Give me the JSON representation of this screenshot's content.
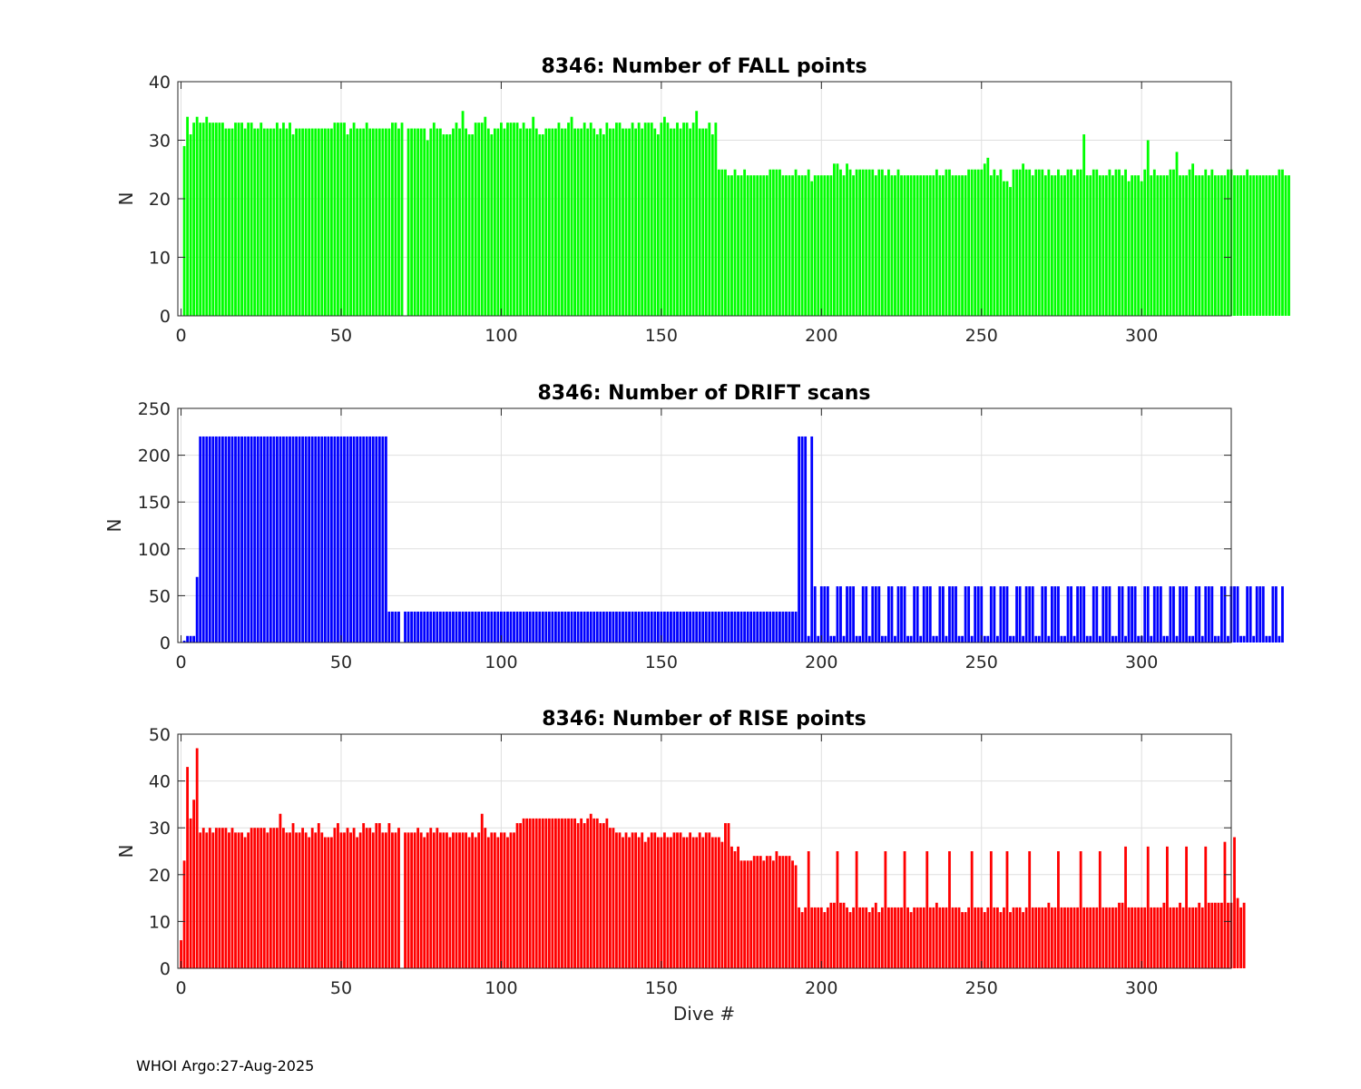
{
  "footer": "WHOI Argo:27-Aug-2025",
  "chart_data": [
    {
      "type": "bar",
      "title": "8346: Number of FALL points",
      "xlabel": "",
      "ylabel": "N",
      "xlim": [
        -1,
        328
      ],
      "ylim": [
        0,
        40
      ],
      "xticks": [
        0,
        50,
        100,
        150,
        200,
        250,
        300
      ],
      "yticks": [
        0,
        10,
        20,
        30,
        40
      ],
      "grid": true,
      "color": "#00ff00",
      "dives_start": 1,
      "values": [
        29,
        34,
        31,
        33,
        34,
        33,
        33,
        34,
        33,
        33,
        33,
        33,
        33,
        32,
        32,
        32,
        33,
        33,
        33,
        32,
        33,
        33,
        32,
        32,
        33,
        32,
        32,
        32,
        32,
        33,
        32,
        33,
        32,
        33,
        31,
        32,
        32,
        32,
        32,
        32,
        32,
        32,
        32,
        32,
        32,
        32,
        32,
        33,
        33,
        33,
        33,
        31,
        32,
        33,
        32,
        32,
        32,
        33,
        32,
        32,
        32,
        32,
        32,
        32,
        32,
        33,
        33,
        32,
        33,
        0,
        32,
        32,
        32,
        32,
        32,
        32,
        30,
        32,
        33,
        32,
        32,
        31,
        31,
        31,
        32,
        33,
        32,
        35,
        32,
        31,
        31,
        33,
        33,
        33,
        34,
        32,
        31,
        32,
        32,
        33,
        32,
        33,
        33,
        33,
        33,
        32,
        33,
        32,
        32,
        34,
        32,
        31,
        31,
        32,
        32,
        32,
        32,
        33,
        32,
        32,
        33,
        34,
        32,
        32,
        32,
        33,
        32,
        33,
        32,
        31,
        32,
        31,
        33,
        32,
        32,
        33,
        33,
        32,
        32,
        32,
        33,
        32,
        33,
        32,
        33,
        33,
        33,
        32,
        31,
        33,
        34,
        33,
        32,
        32,
        33,
        32,
        33,
        33,
        32,
        33,
        35,
        32,
        32,
        32,
        33,
        31,
        33,
        25,
        25,
        25,
        24,
        24,
        25,
        24,
        24,
        25,
        24,
        24,
        24,
        24,
        24,
        24,
        24,
        25,
        25,
        25,
        25,
        24,
        24,
        24,
        24,
        25,
        24,
        24,
        24,
        25,
        23,
        24,
        24,
        24,
        24,
        24,
        24,
        26,
        26,
        25,
        24,
        26,
        25,
        24,
        25,
        25,
        25,
        25,
        25,
        25,
        24,
        25,
        25,
        24,
        25,
        24,
        24,
        25,
        24,
        24,
        24,
        24,
        24,
        24,
        24,
        24,
        24,
        24,
        24,
        25,
        24,
        24,
        25,
        25,
        24,
        24,
        24,
        24,
        24,
        25,
        25,
        25,
        25,
        25,
        26,
        27,
        24,
        25,
        24,
        25,
        23,
        23,
        22,
        25,
        25,
        25,
        26,
        25,
        25,
        24,
        25,
        25,
        25,
        24,
        25,
        24,
        24,
        25,
        24,
        24,
        25,
        25,
        24,
        25,
        25,
        31,
        24,
        24,
        25,
        25,
        24,
        24,
        24,
        25,
        24,
        25,
        25,
        24,
        25,
        23,
        24,
        24,
        24,
        23,
        25,
        30,
        24,
        25,
        24,
        24,
        24,
        24,
        25,
        25,
        28,
        24,
        24,
        24,
        25,
        26,
        24,
        24,
        24,
        25,
        24,
        25,
        24,
        24,
        24,
        24,
        25,
        25,
        24,
        24,
        24,
        24,
        25,
        24,
        24,
        24,
        24,
        24,
        24,
        24,
        24,
        24,
        25,
        25,
        24,
        24
      ]
    },
    {
      "type": "bar",
      "title": "8346: Number of DRIFT scans",
      "xlabel": "",
      "ylabel": "N",
      "xlim": [
        -1,
        328
      ],
      "ylim": [
        0,
        250
      ],
      "xticks": [
        0,
        50,
        100,
        150,
        200,
        250,
        300
      ],
      "yticks": [
        0,
        50,
        100,
        150,
        200,
        250
      ],
      "grid": true,
      "color": "#0000ff",
      "dives_start": 1,
      "values": [
        2,
        7,
        7,
        7,
        70,
        220,
        220,
        220,
        220,
        220,
        220,
        220,
        220,
        220,
        220,
        220,
        220,
        220,
        220,
        220,
        220,
        220,
        220,
        220,
        220,
        220,
        220,
        220,
        220,
        220,
        220,
        220,
        220,
        220,
        220,
        220,
        220,
        220,
        220,
        220,
        220,
        220,
        220,
        220,
        220,
        220,
        220,
        220,
        220,
        220,
        220,
        220,
        220,
        220,
        220,
        220,
        220,
        220,
        220,
        220,
        220,
        220,
        220,
        220,
        33,
        33,
        33,
        33,
        0,
        33,
        33,
        33,
        33,
        33,
        33,
        33,
        33,
        33,
        33,
        33,
        33,
        33,
        33,
        33,
        33,
        33,
        33,
        33,
        33,
        33,
        33,
        33,
        33,
        33,
        33,
        33,
        33,
        33,
        33,
        33,
        33,
        33,
        33,
        33,
        33,
        33,
        33,
        33,
        33,
        33,
        33,
        33,
        33,
        33,
        33,
        33,
        33,
        33,
        33,
        33,
        33,
        33,
        33,
        33,
        33,
        33,
        33,
        33,
        33,
        33,
        33,
        33,
        33,
        33,
        33,
        33,
        33,
        33,
        33,
        33,
        33,
        33,
        33,
        33,
        33,
        33,
        33,
        33,
        33,
        33,
        33,
        33,
        33,
        33,
        33,
        33,
        33,
        33,
        33,
        33,
        33,
        33,
        33,
        33,
        33,
        33,
        33,
        33,
        33,
        33,
        33,
        33,
        33,
        33,
        33,
        33,
        33,
        33,
        33,
        33,
        33,
        33,
        33,
        33,
        33,
        33,
        33,
        33,
        33,
        33,
        33,
        33,
        220,
        220,
        220,
        7,
        220,
        60,
        7,
        60,
        60,
        60,
        7,
        7,
        60,
        60,
        7,
        60,
        60,
        60,
        7,
        7,
        60,
        60,
        7,
        60,
        60,
        60,
        7,
        7,
        60,
        60,
        7,
        60,
        60,
        60,
        7,
        7,
        60,
        60,
        7,
        60,
        60,
        60,
        7,
        7,
        60,
        60,
        7,
        60,
        60,
        60,
        7,
        7,
        60,
        60,
        7,
        60,
        60,
        60,
        7,
        7,
        60,
        60,
        7,
        60,
        60,
        60,
        7,
        7,
        60,
        60,
        7,
        60,
        60,
        60,
        7,
        7,
        60,
        60,
        7,
        60,
        60,
        60,
        7,
        7,
        60,
        60,
        7,
        60,
        60,
        60,
        7,
        7,
        60,
        60,
        7,
        60,
        60,
        60,
        7,
        7,
        60,
        60,
        7,
        60,
        60,
        60,
        7,
        7,
        60,
        60,
        7,
        60,
        60,
        60,
        7,
        7,
        60,
        60,
        7,
        60,
        60,
        60,
        7,
        7,
        60,
        60,
        7,
        60,
        60,
        60,
        7,
        7,
        60,
        60,
        7,
        60,
        60,
        60,
        7,
        7,
        60,
        60,
        7,
        60,
        60,
        60,
        7,
        7,
        60,
        60,
        7,
        60
      ]
    },
    {
      "type": "bar",
      "title": "8346: Number of RISE points",
      "xlabel": "Dive #",
      "ylabel": "N",
      "xlim": [
        -1,
        328
      ],
      "ylim": [
        0,
        50
      ],
      "xticks": [
        0,
        50,
        100,
        150,
        200,
        250,
        300
      ],
      "yticks": [
        0,
        10,
        20,
        30,
        40,
        50
      ],
      "grid": true,
      "color": "#ff0000",
      "dives_start": 0,
      "values": [
        6,
        23,
        43,
        32,
        36,
        47,
        29,
        30,
        29,
        30,
        29,
        30,
        30,
        30,
        30,
        29,
        30,
        29,
        29,
        29,
        28,
        29,
        30,
        30,
        30,
        30,
        30,
        29,
        30,
        30,
        30,
        33,
        30,
        29,
        29,
        31,
        29,
        29,
        30,
        29,
        28,
        30,
        29,
        31,
        29,
        28,
        28,
        28,
        30,
        31,
        29,
        29,
        30,
        29,
        30,
        28,
        29,
        31,
        30,
        30,
        29,
        31,
        31,
        29,
        29,
        31,
        29,
        29,
        30,
        0,
        29,
        29,
        29,
        29,
        30,
        29,
        28,
        29,
        30,
        29,
        30,
        29,
        29,
        29,
        28,
        29,
        29,
        29,
        29,
        29,
        28,
        29,
        28,
        29,
        33,
        30,
        28,
        29,
        29,
        28,
        29,
        29,
        28,
        29,
        29,
        31,
        31,
        32,
        32,
        32,
        32,
        32,
        32,
        32,
        32,
        32,
        32,
        32,
        32,
        32,
        32,
        32,
        32,
        32,
        31,
        32,
        31,
        32,
        33,
        32,
        32,
        31,
        31,
        32,
        30,
        30,
        29,
        29,
        28,
        29,
        28,
        29,
        29,
        28,
        29,
        27,
        28,
        29,
        29,
        28,
        28,
        29,
        28,
        28,
        29,
        29,
        29,
        28,
        28,
        29,
        28,
        28,
        29,
        28,
        29,
        29,
        28,
        28,
        28,
        27,
        31,
        31,
        26,
        25,
        26,
        23,
        23,
        23,
        23,
        24,
        24,
        24,
        23,
        24,
        24,
        23,
        25,
        24,
        24,
        24,
        24,
        23,
        22,
        13,
        12,
        13,
        25,
        13,
        13,
        13,
        13,
        12,
        13,
        14,
        14,
        25,
        14,
        14,
        13,
        12,
        13,
        25,
        13,
        13,
        13,
        12,
        13,
        14,
        12,
        13,
        25,
        13,
        13,
        13,
        13,
        13,
        25,
        13,
        12,
        13,
        13,
        13,
        13,
        25,
        13,
        13,
        14,
        13,
        13,
        13,
        25,
        13,
        13,
        13,
        12,
        12,
        13,
        25,
        13,
        13,
        13,
        12,
        13,
        25,
        13,
        13,
        12,
        13,
        25,
        12,
        13,
        13,
        13,
        12,
        13,
        25,
        13,
        13,
        13,
        13,
        13,
        14,
        13,
        13,
        25,
        13,
        13,
        13,
        13,
        13,
        13,
        25,
        13,
        13,
        13,
        13,
        13,
        25,
        13,
        13,
        13,
        13,
        13,
        14,
        14,
        26,
        13,
        13,
        13,
        13,
        13,
        13,
        26,
        13,
        13,
        13,
        13,
        14,
        26,
        13,
        13,
        13,
        14,
        13,
        26,
        13,
        13,
        13,
        14,
        13,
        26,
        14,
        14,
        14,
        14,
        14,
        27,
        14,
        14,
        28,
        15,
        13,
        14
      ]
    }
  ]
}
